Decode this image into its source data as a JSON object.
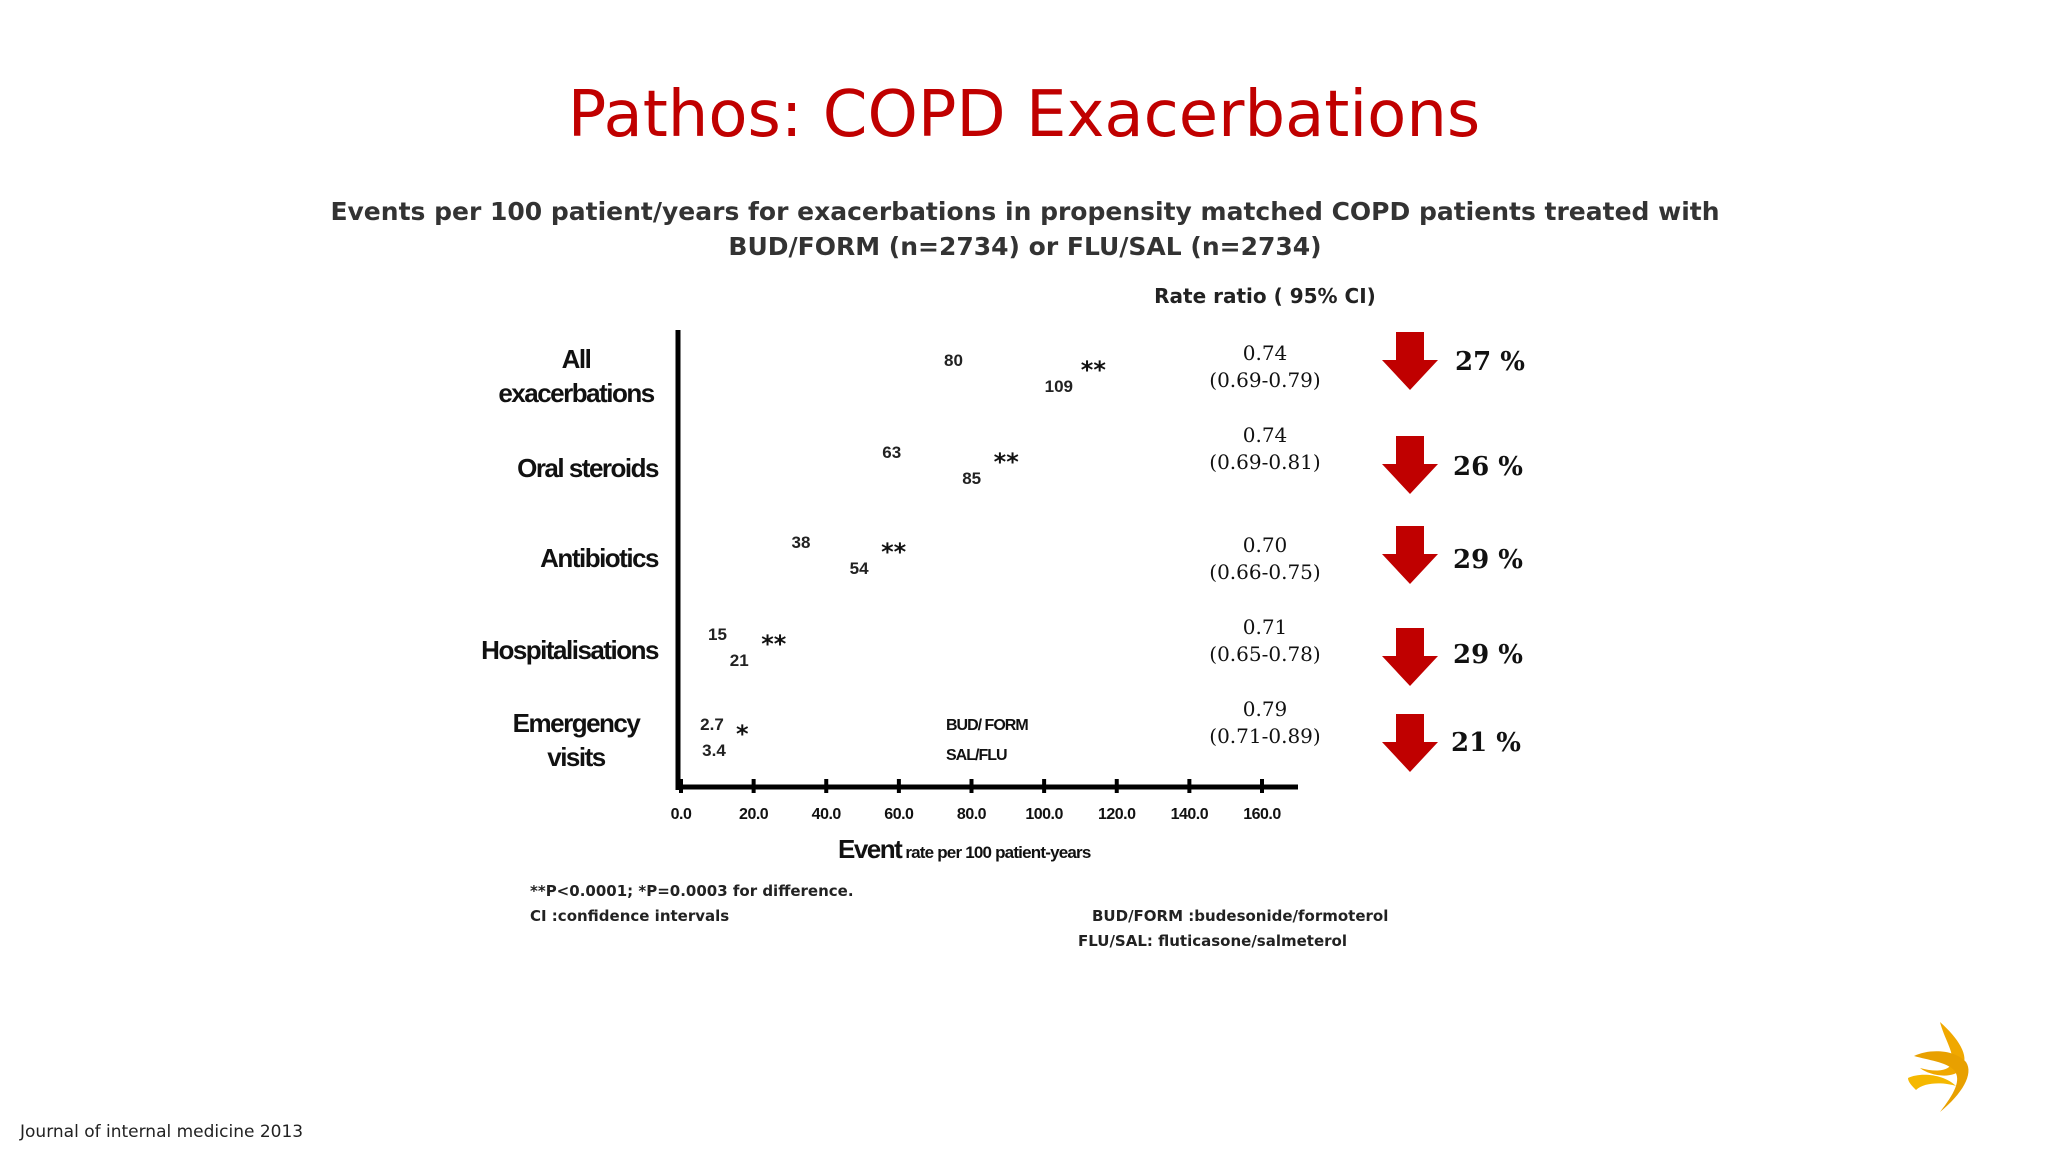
{
  "title": "Pathos: COPD Exacerbations",
  "subtitle": "Events per 100 patient/years for exacerbations in propensity matched COPD patients treated with BUD/FORM (n=2734) or FLU/SAL (n=2734)",
  "rate_ratio_header": "Rate ratio ( 95% CI)",
  "chart_data": {
    "type": "bar",
    "categories": [
      "All\nexacerbations",
      "Oral steroids",
      "Antibiotics",
      "Hospitalisations",
      "Emergency\nvisits"
    ],
    "series": [
      {
        "name": "BUD/ FORM",
        "values": [
          80,
          63,
          38,
          15,
          2.7
        ]
      },
      {
        "name": "SAL/FLU",
        "values": [
          109,
          85,
          54,
          21,
          3.4
        ]
      }
    ],
    "data_labels": {
      "BUD/ FORM": [
        "80",
        "63",
        "38",
        "15",
        "2.7"
      ],
      "SAL/FLU": [
        "109",
        "85",
        "54",
        "21",
        "3.4"
      ]
    },
    "significance": [
      "**",
      "**",
      "**",
      "**",
      "*"
    ],
    "x_ticks": [
      "0.0",
      "20.0",
      "40.0",
      "60.0",
      "80.0",
      "100.0",
      "120.0",
      "140.0",
      "160.0"
    ],
    "xlim": [
      0,
      160
    ],
    "xlabel_main": "Event",
    "xlabel_rest": "rate per 100 patient-years",
    "legend": [
      "BUD/ FORM",
      "SAL/FLU"
    ],
    "orientation": "horizontal"
  },
  "rate_ratios": [
    {
      "value": "0.74",
      "ci": "(0.69-0.79)",
      "reduction": "27 %"
    },
    {
      "value": "0.74",
      "ci": "(0.69-0.81)",
      "reduction": "26 %"
    },
    {
      "value": "0.70",
      "ci": "(0.66-0.75)",
      "reduction": "29 %"
    },
    {
      "value": "0.71",
      "ci": "(0.65-0.78)",
      "reduction": "29 %"
    },
    {
      "value": "0.79",
      "ci": "(0.71-0.89)",
      "reduction": "21 %"
    }
  ],
  "footnotes": {
    "pvalues": "**P<0.0001; *P=0.0003 for difference.",
    "ci": "CI :confidence intervals",
    "bud_form": "BUD/FORM :budesonide/formoterol",
    "flu_sal": "FLU/SAL: fluticasone/salmeterol"
  },
  "source": "Journal of internal medicine 2013",
  "colors": {
    "title": "#c00000",
    "arrow": "#c00000",
    "logo": "#f0a800"
  }
}
